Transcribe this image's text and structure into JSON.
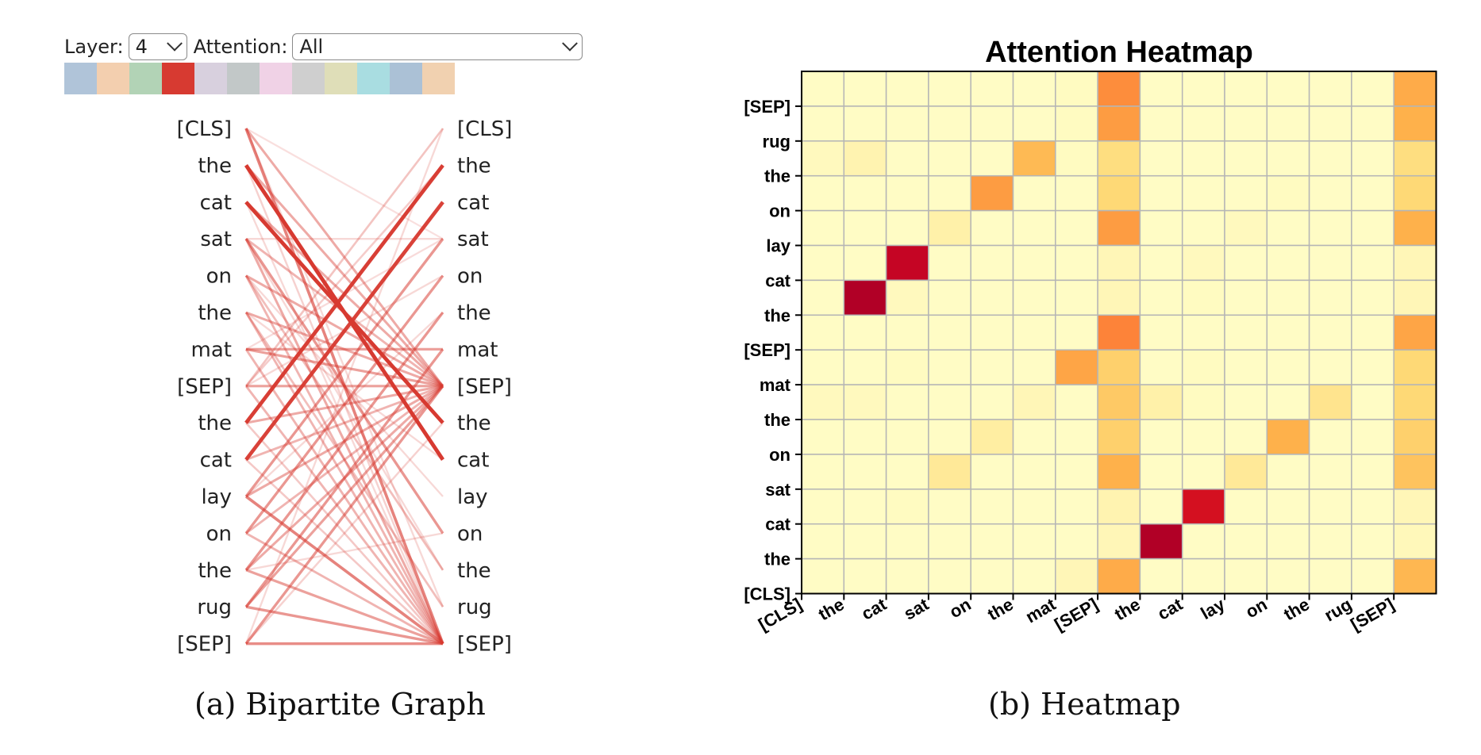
{
  "controls": {
    "layer_label": "Layer:",
    "layer_value": "4",
    "attention_label": "Attention:",
    "attention_value": "All"
  },
  "head_colors": [
    "#b0c4d9",
    "#f3cfaf",
    "#b2d3b6",
    "#d73a31",
    "#d8d0de",
    "#c2c8c8",
    "#f0d2e6",
    "#cfcfcf",
    "#dfdeb8",
    "#a9dde1",
    "#abc1d6",
    "#f1d1b0"
  ],
  "selected_head_index": 3,
  "tokens": [
    "[CLS]",
    "the",
    "cat",
    "sat",
    "on",
    "the",
    "mat",
    "[SEP]",
    "the",
    "cat",
    "lay",
    "on",
    "the",
    "rug",
    "[SEP]"
  ],
  "edge_color": "#d73a31",
  "edges": [
    [
      0,
      14,
      0.55
    ],
    [
      0,
      7,
      0.35
    ],
    [
      0,
      13,
      0.12
    ],
    [
      0,
      3,
      0.08
    ],
    [
      1,
      9,
      0.95
    ],
    [
      1,
      7,
      0.35
    ],
    [
      1,
      14,
      0.15
    ],
    [
      2,
      8,
      0.92
    ],
    [
      2,
      7,
      0.35
    ],
    [
      2,
      14,
      0.12
    ],
    [
      3,
      7,
      0.3
    ],
    [
      3,
      11,
      0.45
    ],
    [
      3,
      14,
      0.35
    ],
    [
      3,
      3,
      0.12
    ],
    [
      3,
      12,
      0.12
    ],
    [
      4,
      7,
      0.35
    ],
    [
      4,
      14,
      0.3
    ],
    [
      4,
      12,
      0.25
    ],
    [
      4,
      10,
      0.12
    ],
    [
      5,
      7,
      0.35
    ],
    [
      5,
      14,
      0.3
    ],
    [
      5,
      13,
      0.25
    ],
    [
      5,
      9,
      0.12
    ],
    [
      6,
      6,
      0.4
    ],
    [
      6,
      7,
      0.4
    ],
    [
      6,
      14,
      0.3
    ],
    [
      6,
      3,
      0.1
    ],
    [
      7,
      0,
      0.22
    ],
    [
      7,
      1,
      0.18
    ],
    [
      7,
      7,
      0.4
    ],
    [
      7,
      14,
      0.3
    ],
    [
      7,
      4,
      0.12
    ],
    [
      8,
      1,
      0.9
    ],
    [
      8,
      7,
      0.35
    ],
    [
      8,
      14,
      0.2
    ],
    [
      9,
      2,
      0.88
    ],
    [
      9,
      7,
      0.3
    ],
    [
      9,
      14,
      0.2
    ],
    [
      10,
      3,
      0.45
    ],
    [
      10,
      7,
      0.35
    ],
    [
      10,
      14,
      0.55
    ],
    [
      10,
      5,
      0.12
    ],
    [
      11,
      4,
      0.45
    ],
    [
      11,
      7,
      0.3
    ],
    [
      11,
      14,
      0.3
    ],
    [
      12,
      5,
      0.45
    ],
    [
      12,
      7,
      0.35
    ],
    [
      12,
      14,
      0.4
    ],
    [
      12,
      11,
      0.12
    ],
    [
      13,
      6,
      0.45
    ],
    [
      13,
      7,
      0.4
    ],
    [
      13,
      14,
      0.45
    ],
    [
      14,
      7,
      0.45
    ],
    [
      14,
      14,
      0.5
    ],
    [
      14,
      0,
      0.12
    ],
    [
      14,
      8,
      0.15
    ]
  ],
  "captions": {
    "a": "(a) Bipartite Graph",
    "b": "(b) Heatmap"
  },
  "chart_data": {
    "type": "heatmap",
    "title": "Attention Heatmap",
    "x_labels": [
      "[CLS]",
      "the",
      "cat",
      "sat",
      "on",
      "the",
      "mat",
      "[SEP]",
      "the",
      "cat",
      "lay",
      "on",
      "the",
      "rug",
      "[SEP]"
    ],
    "y_labels_top_to_bottom": [
      "[SEP]",
      "rug",
      "the",
      "on",
      "lay",
      "cat",
      "the",
      "[SEP]",
      "mat",
      "the",
      "on",
      "sat",
      "cat",
      "the",
      "[CLS]"
    ],
    "grid": true,
    "colormap": [
      "#ffffcc",
      "#ffeda0",
      "#fed976",
      "#feb24c",
      "#fd8d3c",
      "#fc4e2a",
      "#e31a1c",
      "#bd0026",
      "#800026"
    ],
    "values_top_to_bottom": [
      [
        0.02,
        0.02,
        0.02,
        0.02,
        0.02,
        0.02,
        0.03,
        0.5,
        0.02,
        0.02,
        0.02,
        0.02,
        0.02,
        0.02,
        0.4
      ],
      [
        0.02,
        0.02,
        0.02,
        0.02,
        0.02,
        0.02,
        0.03,
        0.45,
        0.02,
        0.02,
        0.02,
        0.02,
        0.02,
        0.02,
        0.38
      ],
      [
        0.04,
        0.08,
        0.02,
        0.02,
        0.02,
        0.35,
        0.03,
        0.22,
        0.02,
        0.02,
        0.02,
        0.02,
        0.02,
        0.02,
        0.22
      ],
      [
        0.02,
        0.02,
        0.02,
        0.02,
        0.45,
        0.02,
        0.02,
        0.25,
        0.02,
        0.02,
        0.02,
        0.03,
        0.02,
        0.02,
        0.25
      ],
      [
        0.02,
        0.02,
        0.02,
        0.1,
        0.02,
        0.02,
        0.02,
        0.45,
        0.02,
        0.02,
        0.04,
        0.02,
        0.02,
        0.02,
        0.38
      ],
      [
        0.02,
        0.02,
        0.85,
        0.02,
        0.02,
        0.02,
        0.02,
        0.06,
        0.02,
        0.04,
        0.02,
        0.02,
        0.02,
        0.02,
        0.06
      ],
      [
        0.02,
        0.9,
        0.04,
        0.02,
        0.02,
        0.02,
        0.02,
        0.06,
        0.02,
        0.03,
        0.02,
        0.02,
        0.02,
        0.02,
        0.06
      ],
      [
        0.02,
        0.02,
        0.02,
        0.02,
        0.02,
        0.02,
        0.02,
        0.52,
        0.02,
        0.02,
        0.02,
        0.02,
        0.02,
        0.02,
        0.42
      ],
      [
        0.02,
        0.02,
        0.03,
        0.02,
        0.02,
        0.02,
        0.42,
        0.28,
        0.02,
        0.03,
        0.02,
        0.02,
        0.02,
        0.02,
        0.25
      ],
      [
        0.04,
        0.04,
        0.02,
        0.02,
        0.02,
        0.06,
        0.02,
        0.3,
        0.1,
        0.03,
        0.02,
        0.02,
        0.18,
        0.02,
        0.25
      ],
      [
        0.02,
        0.02,
        0.02,
        0.02,
        0.12,
        0.02,
        0.02,
        0.28,
        0.02,
        0.02,
        0.02,
        0.38,
        0.02,
        0.02,
        0.28
      ],
      [
        0.02,
        0.02,
        0.02,
        0.15,
        0.02,
        0.02,
        0.02,
        0.38,
        0.02,
        0.02,
        0.15,
        0.02,
        0.02,
        0.02,
        0.32
      ],
      [
        0.02,
        0.02,
        0.03,
        0.02,
        0.02,
        0.02,
        0.02,
        0.08,
        0.02,
        0.8,
        0.02,
        0.02,
        0.02,
        0.02,
        0.06
      ],
      [
        0.02,
        0.02,
        0.02,
        0.02,
        0.02,
        0.02,
        0.02,
        0.06,
        0.9,
        0.02,
        0.02,
        0.02,
        0.02,
        0.02,
        0.05
      ],
      [
        0.02,
        0.02,
        0.02,
        0.02,
        0.02,
        0.02,
        0.06,
        0.4,
        0.02,
        0.02,
        0.02,
        0.02,
        0.02,
        0.02,
        0.36
      ]
    ]
  }
}
